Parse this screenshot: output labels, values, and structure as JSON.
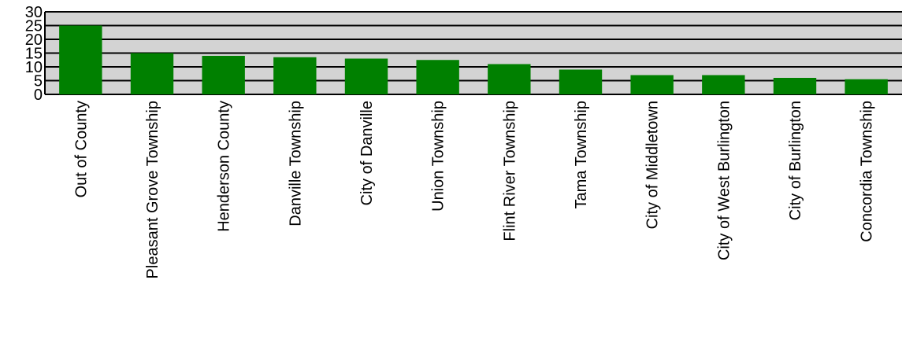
{
  "chart_data": {
    "type": "bar",
    "title": "",
    "xlabel": "",
    "ylabel": "",
    "ylim": [
      0,
      30
    ],
    "yticks": [
      "0",
      "5",
      "10",
      "15",
      "20",
      "25",
      "30"
    ],
    "grid": true,
    "categories": [
      "Out of County",
      "Pleasant Grove Township",
      "Henderson County",
      "Danville Township",
      "City of Danville",
      "Union Township",
      "Flint River Township",
      "Tama Township",
      "City of Middletown",
      "City of West Burlington",
      "City of Burlington",
      "Concordia Township"
    ],
    "values": [
      25,
      15,
      14,
      13.5,
      13,
      12.5,
      11,
      9,
      7,
      7,
      6,
      5.5
    ],
    "colors": {
      "bar": "#008000",
      "plot_background": "#d3d3d3",
      "gridline": "#000000",
      "text": "#000000"
    }
  }
}
